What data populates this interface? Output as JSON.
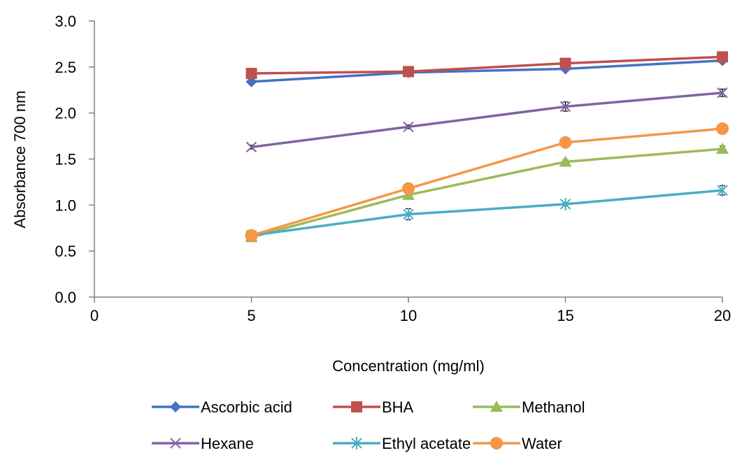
{
  "chart_data": {
    "type": "line",
    "xlabel": "Concentration (mg/ml)",
    "ylabel": "Absorbance 700 nm",
    "xlim": [
      0,
      20
    ],
    "ylim": [
      0,
      3.0
    ],
    "x_ticks": [
      "0",
      "5",
      "10",
      "15",
      "20"
    ],
    "y_ticks": [
      "0.0",
      "0.5",
      "1.0",
      "1.5",
      "2.0",
      "2.5",
      "3.0"
    ],
    "grid": false,
    "legend_position": "bottom",
    "x": [
      5,
      10,
      15,
      20
    ],
    "series": [
      {
        "name": "Ascorbic acid",
        "values": [
          2.34,
          2.44,
          2.48,
          2.57
        ],
        "errors": [
          0.03,
          0.02,
          0.02,
          0.02
        ],
        "color": "#4472c4",
        "marker": "diamond"
      },
      {
        "name": "BHA",
        "values": [
          2.43,
          2.45,
          2.54,
          2.61
        ],
        "errors": [
          0.02,
          0.02,
          0.02,
          0.02
        ],
        "color": "#c0504d",
        "marker": "square"
      },
      {
        "name": "Methanol",
        "values": [
          0.65,
          1.11,
          1.47,
          1.61
        ],
        "errors": [
          0.02,
          0.03,
          0.02,
          0.03
        ],
        "color": "#9bbb59",
        "marker": "triangle"
      },
      {
        "name": "Hexane",
        "values": [
          1.63,
          1.85,
          2.07,
          2.22
        ],
        "errors": [
          0.02,
          0.02,
          0.05,
          0.04
        ],
        "color": "#8064a2",
        "marker": "x"
      },
      {
        "name": "Ethyl acetate",
        "values": [
          0.67,
          0.9,
          1.01,
          1.16
        ],
        "errors": [
          0.02,
          0.06,
          0.02,
          0.05
        ],
        "color": "#4bacc6",
        "marker": "star"
      },
      {
        "name": "Water",
        "values": [
          0.67,
          1.18,
          1.68,
          1.83
        ],
        "errors": [
          0.02,
          0.02,
          0.02,
          0.02
        ],
        "color": "#f79646",
        "marker": "circle"
      }
    ]
  }
}
